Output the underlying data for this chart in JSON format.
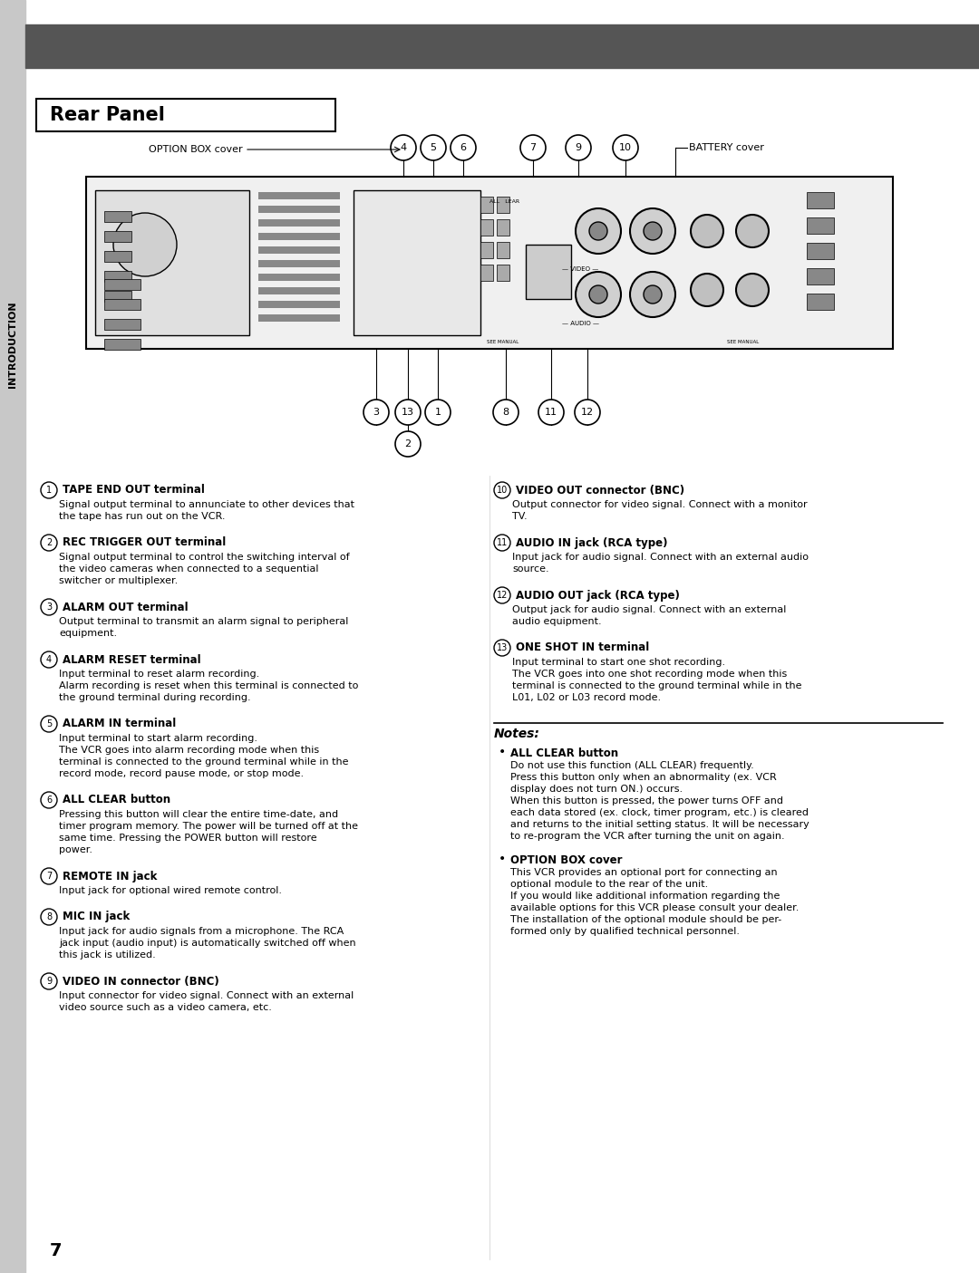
{
  "page_bg": "#ffffff",
  "sidebar_color": "#c8c8c8",
  "header_bar_color": "#555555",
  "sidebar_text": "INTRODUCTION",
  "sidebar_text_color": "#000000",
  "section_title": "Rear Panel",
  "page_number": "7",
  "items_left": [
    {
      "num": "1",
      "title": "TAPE END OUT terminal",
      "body": "Signal output terminal to annunciate to other devices that\nthe tape has run out on the VCR."
    },
    {
      "num": "2",
      "title": "REC TRIGGER OUT terminal",
      "body": "Signal output terminal to control the switching interval of\nthe video cameras when connected to a sequential\nswitcher or multiplexer."
    },
    {
      "num": "3",
      "title": "ALARM OUT terminal",
      "body": "Output terminal to transmit an alarm signal to peripheral\nequipment."
    },
    {
      "num": "4",
      "title": "ALARM RESET terminal",
      "body": "Input terminal to reset alarm recording.\nAlarm recording is reset when this terminal is connected to\nthe ground terminal during recording."
    },
    {
      "num": "5",
      "title": "ALARM IN terminal",
      "body": "Input terminal to start alarm recording.\nThe VCR goes into alarm recording mode when this\nterminal is connected to the ground terminal while in the\nrecord mode, record pause mode, or stop mode."
    },
    {
      "num": "6",
      "title": "ALL CLEAR button",
      "body": "Pressing this button will clear the entire time-date, and\ntimer program memory. The power will be turned off at the\nsame time. Pressing the POWER button will restore\npower."
    },
    {
      "num": "7",
      "title": "REMOTE IN jack",
      "body": "Input jack for optional wired remote control."
    },
    {
      "num": "8",
      "title": "MIC IN jack",
      "body": "Input jack for audio signals from a microphone. The RCA\njack input (audio input) is automatically switched off when\nthis jack is utilized."
    },
    {
      "num": "9",
      "title": "VIDEO IN connector (BNC)",
      "body": "Input connector for video signal. Connect with an external\nvideo source such as a video camera, etc."
    }
  ],
  "items_right": [
    {
      "num": "10",
      "title": "VIDEO OUT connector (BNC)",
      "body": "Output connector for video signal. Connect with a monitor\nTV."
    },
    {
      "num": "11",
      "title": "AUDIO IN jack (RCA type)",
      "body": "Input jack for audio signal. Connect with an external audio\nsource."
    },
    {
      "num": "12",
      "title": "AUDIO OUT jack (RCA type)",
      "body": "Output jack for audio signal. Connect with an external\naudio equipment."
    },
    {
      "num": "13",
      "title": "ONE SHOT IN terminal",
      "body": "Input terminal to start one shot recording.\nThe VCR goes into one shot recording mode when this\nterminal is connected to the ground terminal while in the\nL01, L02 or L03 record mode."
    }
  ],
  "notes_title": "Notes:",
  "notes": [
    {
      "title": "ALL CLEAR button",
      "body": "Do not use this function (ALL CLEAR) frequently.\nPress this button only when an abnormality (ex. VCR\ndisplay does not turn ON.) occurs.\nWhen this button is pressed, the power turns OFF and\neach data stored (ex. clock, timer program, etc.) is cleared\nand returns to the initial setting status. It will be necessary\nto re-program the VCR after turning the unit on again."
    },
    {
      "title": "OPTION BOX cover",
      "body": "This VCR provides an optional port for connecting an\noptional module to the rear of the unit.\nIf you would like additional information regarding the\navailable options for this VCR please consult your dealer.\nThe installation of the optional module should be per-\nformed only by qualified technical personnel."
    }
  ],
  "diagram_label_top": [
    "4",
    "5",
    "6",
    "7",
    "9",
    "10"
  ],
  "diagram_label_bottom": [
    "3",
    "13",
    "1",
    "8",
    "11",
    "12"
  ],
  "diagram_label_bottom2": [
    "2"
  ],
  "diagram_extra_top_left": "OPTION BOX cover",
  "diagram_extra_top_right": "BATTERY cover"
}
